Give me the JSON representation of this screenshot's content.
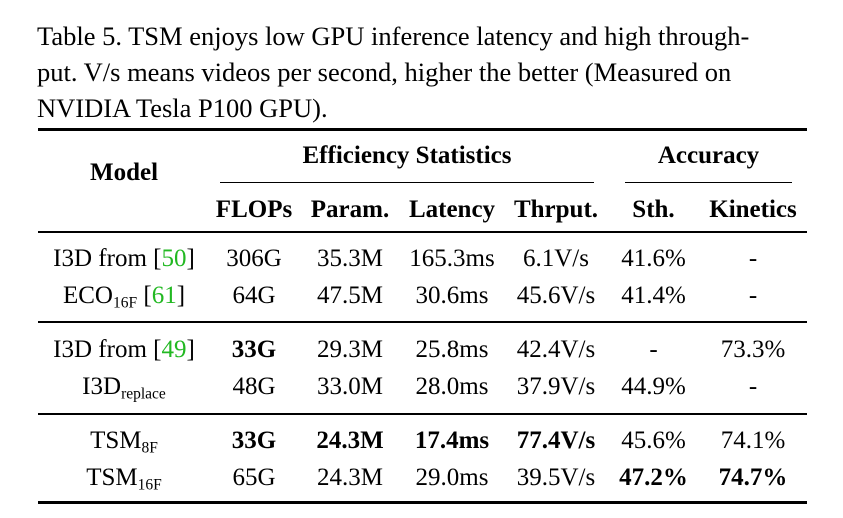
{
  "caption": {
    "line1": "Table 5. TSM enjoys low GPU inference latency and high through-",
    "line2": "put. V/s means videos per second, higher the better (Measured on",
    "line3": "NVIDIA Tesla P100 GPU)."
  },
  "header": {
    "model": "Model",
    "efficiency": "Efficiency Statistics",
    "accuracy": "Accuracy",
    "flops": "FLOPs",
    "param": "Param.",
    "latency": "Latency",
    "thrput": "Thrput.",
    "sth": "Sth.",
    "kinetics": "Kinetics"
  },
  "rows": [
    {
      "model": {
        "text": "I3D from [",
        "cite": "50",
        "tail": "]"
      },
      "flops": "306G",
      "param": "35.3M",
      "latency": "165.3ms",
      "thrput": "6.1V/s",
      "sth": "41.6%",
      "kinetics": "-"
    },
    {
      "model": {
        "base": "ECO",
        "sub": "16F",
        "text": " [",
        "cite": "61",
        "tail": "]"
      },
      "flops": "64G",
      "param": "47.5M",
      "latency": "30.6ms",
      "thrput": "45.6V/s",
      "sth": "41.4%",
      "kinetics": "-"
    },
    {
      "model": {
        "text": "I3D from [",
        "cite": "49",
        "tail": "]"
      },
      "flops": "33G",
      "param": "29.3M",
      "latency": "25.8ms",
      "thrput": "42.4V/s",
      "sth": "-",
      "kinetics": "73.3%"
    },
    {
      "model": {
        "base": "I3D",
        "sub": "replace"
      },
      "flops": "48G",
      "param": "33.0M",
      "latency": "28.0ms",
      "thrput": "37.9V/s",
      "sth": "44.9%",
      "kinetics": "-"
    },
    {
      "model": {
        "base": "TSM",
        "sub": "8F"
      },
      "flops": "33G",
      "param": "24.3M",
      "latency": "17.4ms",
      "thrput": "77.4V/s",
      "sth": "45.6%",
      "kinetics": "74.1%"
    },
    {
      "model": {
        "base": "TSM",
        "sub": "16F"
      },
      "flops": "65G",
      "param": "24.3M",
      "latency": "29.0ms",
      "thrput": "39.5V/s",
      "sth": "47.2%",
      "kinetics": "74.7%"
    }
  ]
}
